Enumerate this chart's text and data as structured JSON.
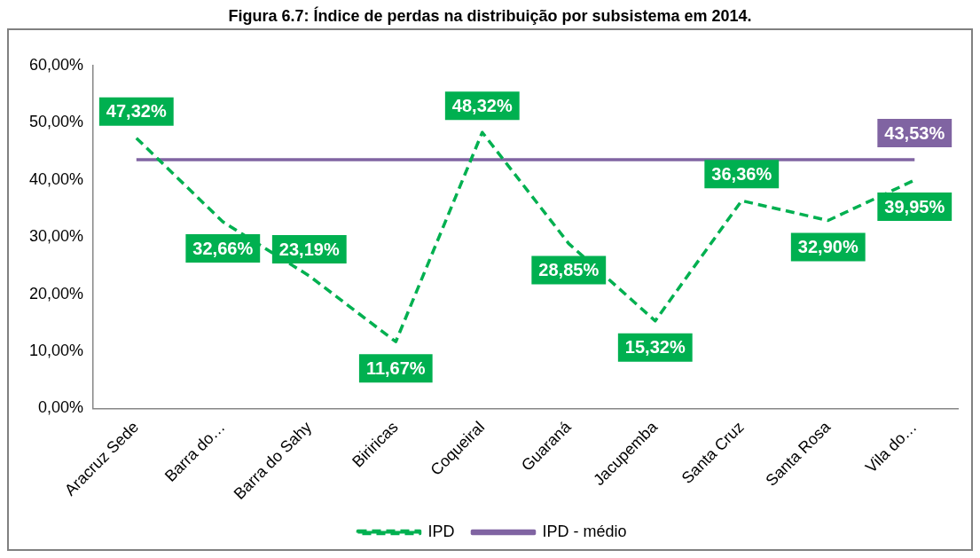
{
  "chart_data": {
    "type": "line",
    "title": "Figura 6.7: Índice de perdas na distribuição por subsistema em 2014.",
    "categories": [
      "Aracruz Sede",
      "Barra do…",
      "Barra do Sahy",
      "Biriricas",
      "Coqueiral",
      "Guaraná",
      "Jacupemba",
      "Santa Cruz",
      "Santa Rosa",
      "Vila do…"
    ],
    "series": [
      {
        "name": "IPD",
        "color": "#00b050",
        "line_style": "dashed",
        "values": [
          47.32,
          32.66,
          23.19,
          11.67,
          48.32,
          28.85,
          15.32,
          36.36,
          32.9,
          39.95
        ],
        "value_labels": [
          "47,32%",
          "32,66%",
          "23,19%",
          "11,67%",
          "48,32%",
          "28,85%",
          "15,32%",
          "36,36%",
          "32,90%",
          "39,95%"
        ]
      },
      {
        "name": "IPD - médio",
        "color": "#8064a2",
        "line_style": "solid",
        "values": [
          43.53,
          43.53,
          43.53,
          43.53,
          43.53,
          43.53,
          43.53,
          43.53,
          43.53,
          43.53
        ],
        "value_labels": [
          null,
          null,
          null,
          null,
          null,
          null,
          null,
          null,
          null,
          "43,53%"
        ]
      }
    ],
    "ylim": [
      0,
      60
    ],
    "yticks": [
      {
        "value": 0,
        "label": "0,00%"
      },
      {
        "value": 10,
        "label": "10,00%"
      },
      {
        "value": 20,
        "label": "20,00%"
      },
      {
        "value": 30,
        "label": "30,00%"
      },
      {
        "value": 40,
        "label": "40,00%"
      },
      {
        "value": 50,
        "label": "50,00%"
      },
      {
        "value": 60,
        "label": "60,00%"
      }
    ],
    "grid": false,
    "legend": "bottom",
    "marker": "none"
  }
}
